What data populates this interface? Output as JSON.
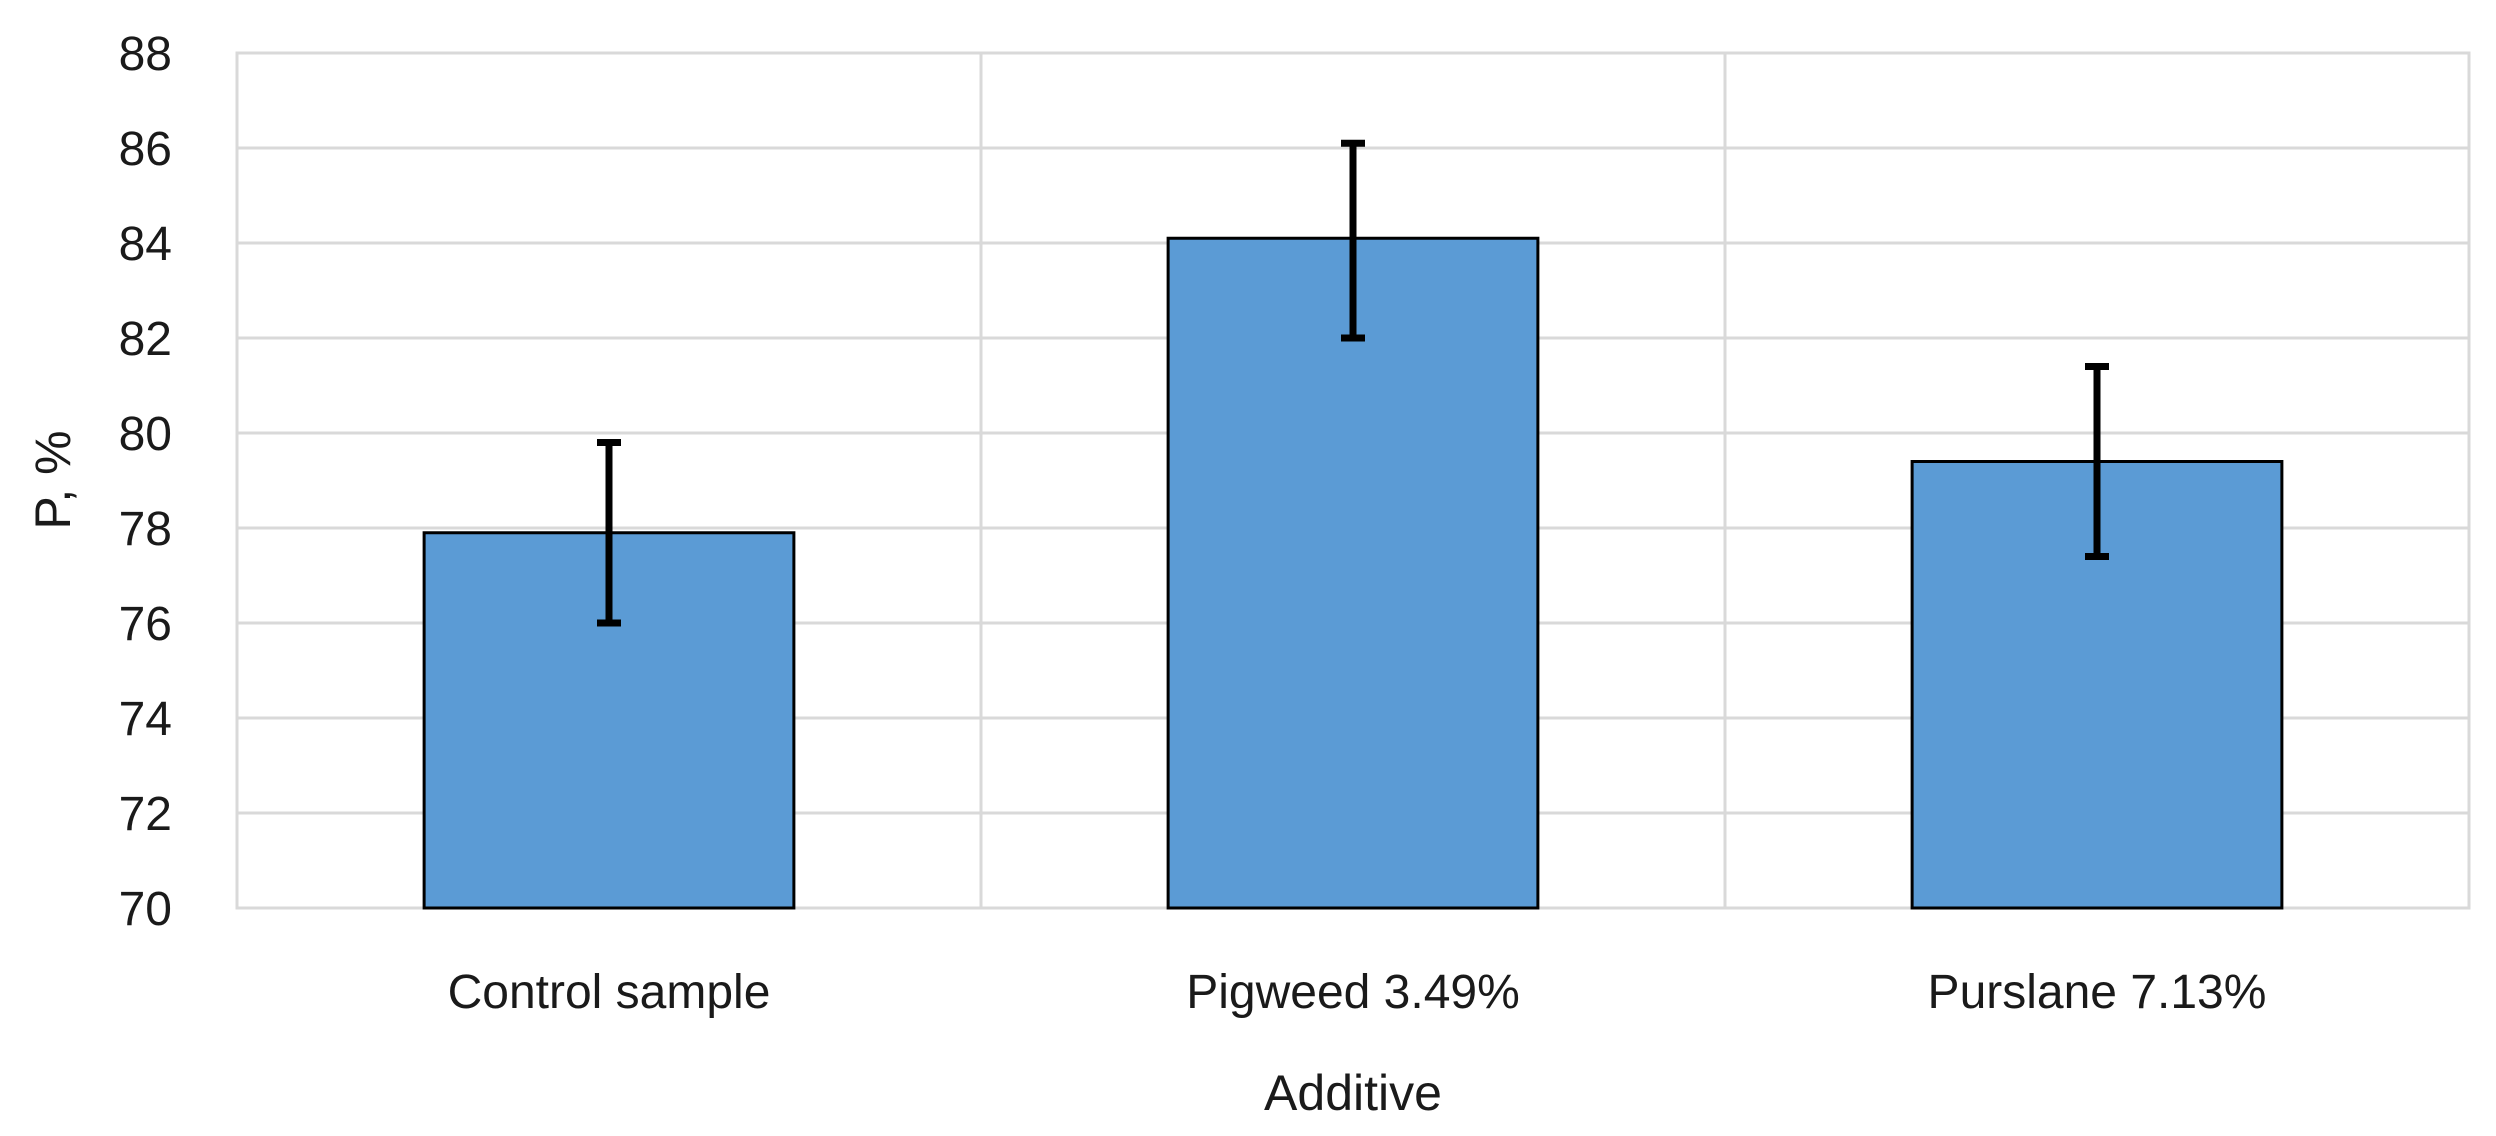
{
  "chart_data": {
    "type": "bar",
    "title": "",
    "xlabel": "Additive",
    "ylabel": "P, %",
    "ylim": [
      70,
      88
    ],
    "yticks": [
      70,
      72,
      74,
      76,
      78,
      80,
      82,
      84,
      86,
      88
    ],
    "categories": [
      "Control sample",
      "Pigweed 3.49%",
      "Purslane 7.13%"
    ],
    "values": [
      77.9,
      84.1,
      79.4
    ],
    "error_bars": [
      {
        "low": 76.0,
        "high": 79.8
      },
      {
        "low": 82.0,
        "high": 86.1
      },
      {
        "low": 77.4,
        "high": 81.4
      }
    ],
    "grid": true,
    "legend": "none",
    "colors": {
      "bar_fill": "#5b9bd5",
      "bar_stroke": "#000000",
      "grid": "#d9d9d9",
      "error_bar": "#000000"
    }
  }
}
